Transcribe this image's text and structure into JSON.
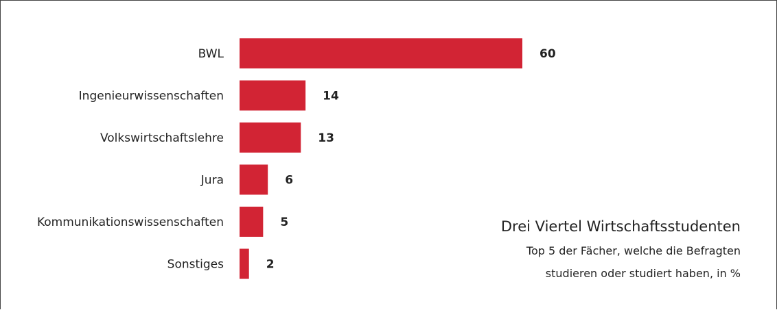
{
  "chart_data": {
    "type": "bar",
    "orientation": "horizontal",
    "title": "Drei Viertel Wirtschaftsstudenten",
    "subtitle_lines": [
      "Top 5 der Fächer, welche die Befragten",
      "studieren oder studiert haben, in %"
    ],
    "categories": [
      "BWL",
      "Ingenieurwissenschaften",
      "Volkswirtschaftslehre",
      "Jura",
      "Kommunikationswissenschaften",
      "Sonstiges"
    ],
    "values": [
      60,
      14,
      13,
      6,
      5,
      2
    ],
    "xlim": [
      0,
      60
    ],
    "grid": false,
    "legend": "none",
    "bar_color": "#d22434"
  }
}
